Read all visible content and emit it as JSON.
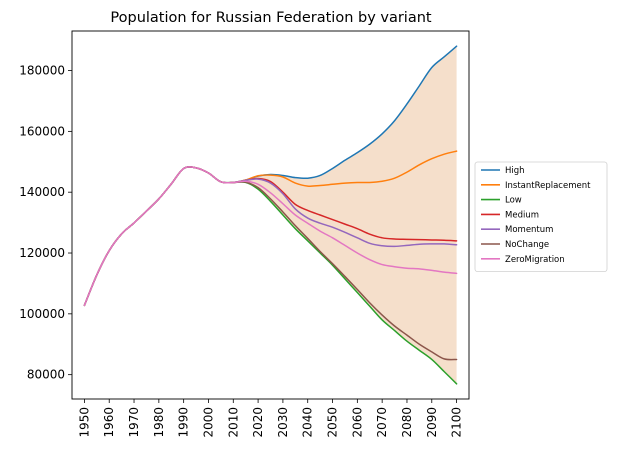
{
  "chart_data": {
    "type": "line",
    "title": "Population for Russian Federation by variant",
    "xlabel": "",
    "ylabel": "",
    "xlim": [
      1945,
      2105
    ],
    "ylim": [
      72000,
      193000
    ],
    "x_ticks": [
      "1950",
      "1960",
      "1970",
      "1980",
      "1990",
      "2000",
      "2010",
      "2020",
      "2030",
      "2040",
      "2050",
      "2060",
      "2070",
      "2080",
      "2090",
      "2100"
    ],
    "y_ticks": [
      "80000",
      "100000",
      "120000",
      "140000",
      "160000",
      "180000"
    ],
    "legend_position": "right",
    "grid": false,
    "band": {
      "lower_series": "Low",
      "upper_series": "High",
      "color": "#f5dfcb"
    },
    "x": [
      1950,
      1955,
      1960,
      1965,
      1970,
      1975,
      1980,
      1985,
      1990,
      1995,
      2000,
      2005,
      2010,
      2015,
      2020,
      2025,
      2030,
      2035,
      2040,
      2045,
      2050,
      2055,
      2060,
      2065,
      2070,
      2075,
      2080,
      2085,
      2090,
      2095,
      2100
    ],
    "series": [
      {
        "name": "High",
        "color": "#1f77b4",
        "values": [
          102800,
          112800,
          120800,
          126300,
          129900,
          133800,
          137800,
          142700,
          147800,
          148000,
          146300,
          143400,
          143200,
          144000,
          145300,
          145800,
          145500,
          144800,
          144600,
          145500,
          147800,
          150500,
          153000,
          155800,
          159200,
          163500,
          169000,
          175000,
          181000,
          184500,
          188000
        ]
      },
      {
        "name": "InstantReplacement",
        "color": "#ff7f0e",
        "values": [
          102800,
          112800,
          120800,
          126300,
          129900,
          133800,
          137800,
          142700,
          147800,
          148000,
          146300,
          143400,
          143200,
          144000,
          145400,
          145600,
          145000,
          143000,
          142000,
          142200,
          142600,
          143000,
          143200,
          143200,
          143600,
          144600,
          146600,
          149000,
          151000,
          152500,
          153500
        ]
      },
      {
        "name": "Low",
        "color": "#2ca02c",
        "values": [
          102800,
          112800,
          120800,
          126300,
          129900,
          133800,
          137800,
          142700,
          147800,
          148000,
          146300,
          143400,
          143200,
          143200,
          141000,
          137000,
          132500,
          128000,
          124000,
          120000,
          116000,
          111500,
          107000,
          102500,
          98000,
          94500,
          91000,
          88000,
          85000,
          81000,
          77000
        ]
      },
      {
        "name": "Medium",
        "color": "#d62728",
        "values": [
          102800,
          112800,
          120800,
          126300,
          129900,
          133800,
          137800,
          142700,
          147800,
          148000,
          146300,
          143400,
          143200,
          143900,
          144500,
          143500,
          140000,
          136000,
          134000,
          132500,
          131000,
          129500,
          128000,
          126200,
          125000,
          124600,
          124500,
          124400,
          124300,
          124200,
          124000
        ]
      },
      {
        "name": "Momentum",
        "color": "#9467bd",
        "values": [
          102800,
          112800,
          120800,
          126300,
          129900,
          133800,
          137800,
          142700,
          147800,
          148000,
          146300,
          143400,
          143200,
          143900,
          144300,
          143000,
          139500,
          134500,
          131500,
          129800,
          128500,
          126800,
          125000,
          123200,
          122400,
          122200,
          122500,
          122900,
          123000,
          123000,
          122700
        ]
      },
      {
        "name": "NoChange",
        "color": "#8c564b",
        "values": [
          102800,
          112800,
          120800,
          126300,
          129900,
          133800,
          137800,
          142700,
          147800,
          148000,
          146300,
          143400,
          143200,
          143300,
          141500,
          137800,
          133500,
          129000,
          124800,
          120500,
          116500,
          112300,
          108000,
          103600,
          99600,
          96000,
          93000,
          90000,
          87500,
          85200,
          85000
        ]
      },
      {
        "name": "ZeroMigration",
        "color": "#e377c2",
        "values": [
          102800,
          112800,
          120800,
          126300,
          129900,
          133800,
          137800,
          142700,
          147800,
          148000,
          146300,
          143400,
          143200,
          143600,
          142600,
          139800,
          136200,
          132500,
          129800,
          127200,
          125000,
          122500,
          120000,
          117800,
          116200,
          115500,
          115000,
          114800,
          114300,
          113700,
          113300
        ]
      }
    ]
  }
}
